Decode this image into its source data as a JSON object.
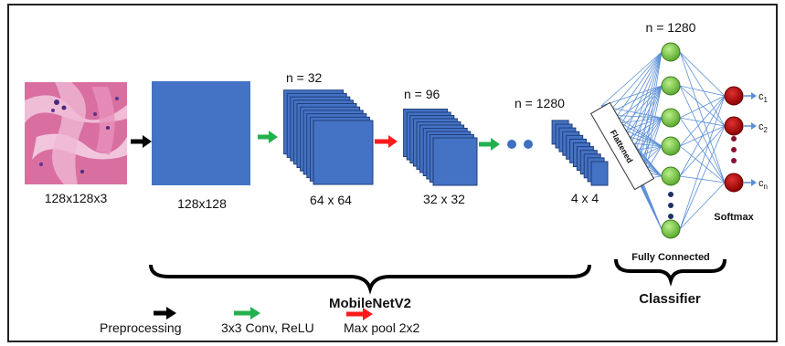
{
  "labels": {
    "input_size": "128x128x3",
    "stage1_size": "128x128",
    "stage2_n": "n = 32",
    "stage2_size": "64 x 64",
    "stage3_n": "n = 96",
    "stage3_size": "32 x 32",
    "stage4_n": "n = 1280",
    "stage4_size": "4 x 4",
    "flattened": "Flattened",
    "fc_n": "n = 1280",
    "fully_connected": "Fully Connected",
    "softmax": "Softmax",
    "mobilenet": "MobileNetV2",
    "classifier": "Classifier"
  },
  "classes": [
    {
      "base": "c",
      "sub": "1"
    },
    {
      "base": "c",
      "sub": "2"
    },
    {
      "base": "c",
      "sub": "n"
    }
  ],
  "legend": [
    {
      "label": "Preprocessing",
      "color": "#000000"
    },
    {
      "label": "3x3 Conv, ReLU",
      "color": "#22b14c"
    },
    {
      "label": "Max pool 2x2",
      "color": "#ff1a1a"
    }
  ],
  "colors": {
    "block": "#4472c4",
    "block_edge": "#1f3f7a",
    "node_green": "#7cc84a",
    "node_red": "#c00000",
    "edge": "#5b8fd6",
    "arrow_black": "#000000",
    "arrow_green": "#22b14c",
    "arrow_red": "#ff1a1a",
    "tissue_pink": "#d86fa0"
  }
}
